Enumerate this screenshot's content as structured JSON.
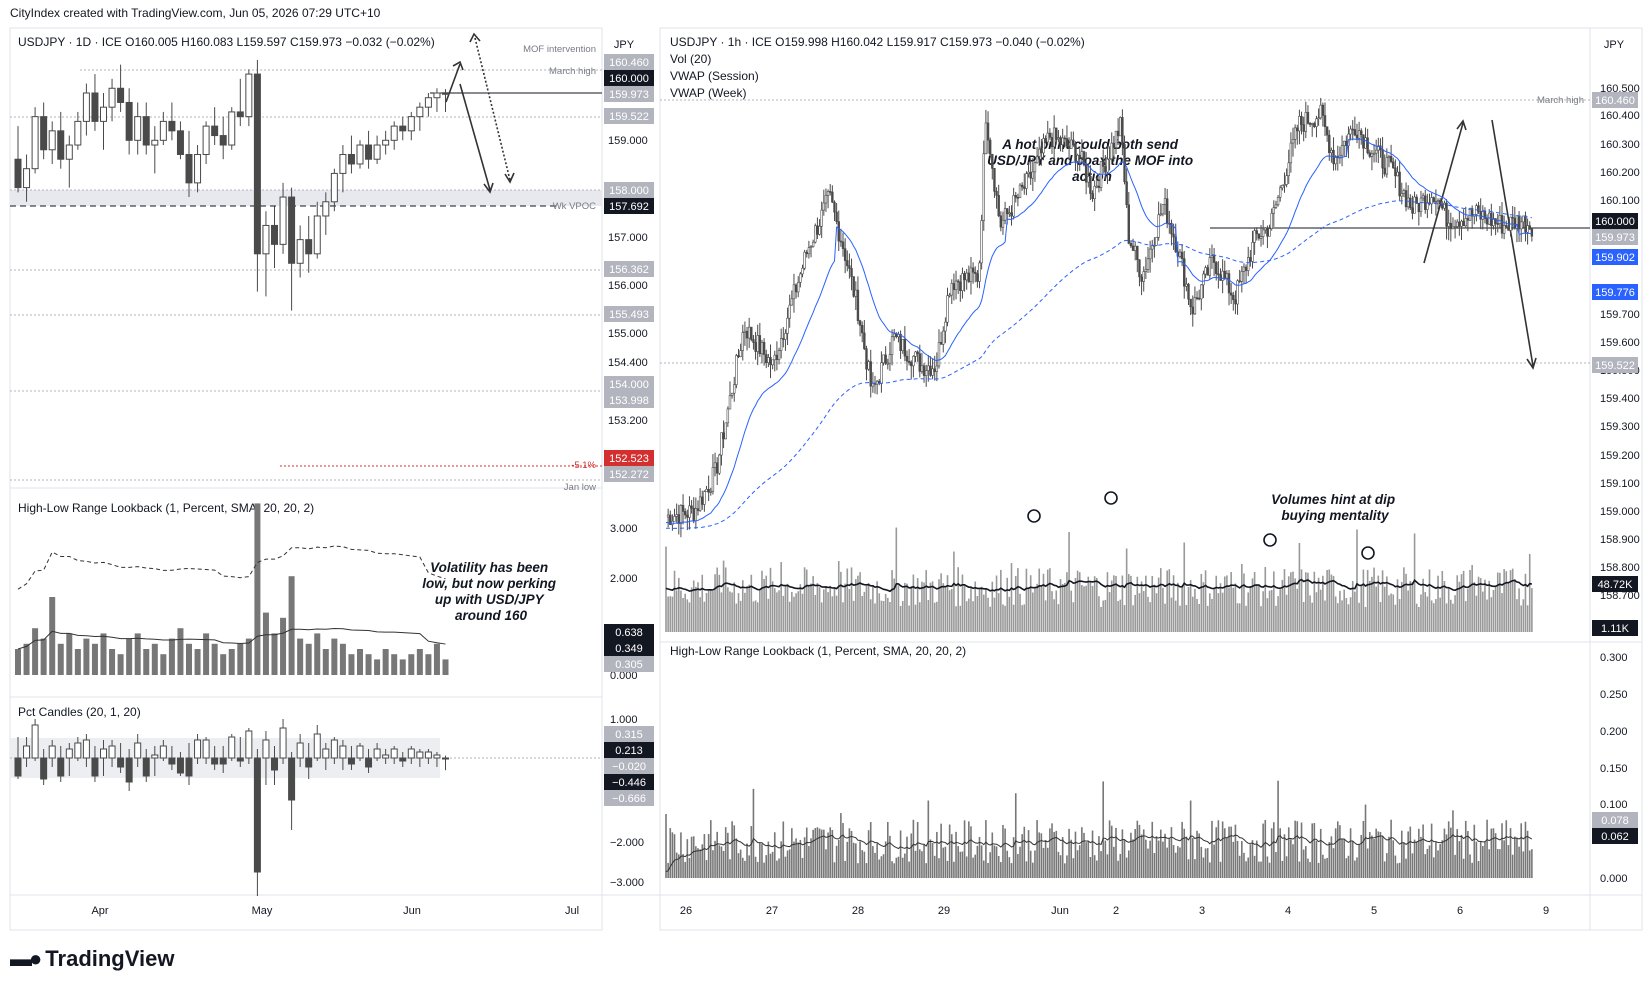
{
  "header": {
    "credit": "CityIndex created with TradingView.com, Jun 05, 2026 07:29 UTC+10"
  },
  "brand": {
    "name": "TradingView",
    "icon": "tradingview-logo-icon"
  },
  "colors": {
    "candle": "#4a4a4a",
    "vwap_session": "#2962ff",
    "vwap_week": "#2962ff",
    "highlight_label": "#d32f2f",
    "blue_label": "#2962ff",
    "dark_label": "#131722",
    "grey_label": "#b2b5be"
  },
  "left_chart": {
    "symbol_line": "USDJPY · 1D · ICE   O160.005   H160.083   L159.597   C159.973   −0.032 (−0.02%)",
    "currency": "JPY",
    "x_ticks": [
      "Apr",
      "May",
      "Jun",
      "Jul"
    ],
    "price_ticks": [
      "159.000",
      "157.000",
      "156.000",
      "155.000",
      "154.400",
      "153.200"
    ],
    "price_labels": [
      {
        "text": "160.460",
        "style": "grey",
        "value": 160.46
      },
      {
        "text": "160.000",
        "style": "dark",
        "value": 160.0
      },
      {
        "text": "159.973",
        "style": "grey",
        "value": 159.973
      },
      {
        "text": "159.522",
        "style": "grey",
        "value": 159.522
      },
      {
        "text": "158.000",
        "style": "grey",
        "value": 158.0
      },
      {
        "text": "157.692",
        "style": "dark",
        "value": 157.692
      },
      {
        "text": "156.362",
        "style": "grey",
        "value": 156.362
      },
      {
        "text": "155.493",
        "style": "grey",
        "value": 155.493
      },
      {
        "text": "154.000",
        "style": "grey",
        "value": 154.0
      },
      {
        "text": "153.998",
        "style": "grey",
        "value": 153.998
      },
      {
        "text": "152.523",
        "style": "red",
        "value": 152.523
      },
      {
        "text": "152.272",
        "style": "grey",
        "value": 152.272
      }
    ],
    "line_labels": {
      "mof": "MOF intervention",
      "march_high": "March high",
      "wk_vpoc": "Wk VPOC",
      "pct": "-5.1%",
      "jan_low": "Jan low"
    },
    "candles": [
      [
        158.6,
        159.3,
        157.9,
        158.0
      ],
      [
        158.0,
        158.7,
        157.7,
        158.4
      ],
      [
        158.4,
        159.7,
        158.3,
        159.5
      ],
      [
        159.5,
        159.8,
        158.6,
        158.8
      ],
      [
        158.8,
        159.4,
        158.5,
        159.2
      ],
      [
        159.2,
        159.6,
        158.4,
        158.6
      ],
      [
        158.6,
        159.1,
        158.0,
        158.9
      ],
      [
        158.9,
        159.6,
        158.8,
        159.4
      ],
      [
        159.4,
        160.2,
        159.1,
        160.0
      ],
      [
        160.0,
        160.4,
        159.2,
        159.4
      ],
      [
        159.4,
        160.0,
        158.8,
        159.7
      ],
      [
        159.7,
        160.3,
        159.4,
        160.1
      ],
      [
        160.1,
        160.6,
        159.6,
        159.8
      ],
      [
        159.8,
        160.1,
        158.7,
        159.0
      ],
      [
        159.0,
        159.8,
        158.7,
        159.5
      ],
      [
        159.5,
        159.8,
        158.7,
        158.9
      ],
      [
        158.9,
        159.3,
        158.3,
        159.0
      ],
      [
        159.0,
        159.6,
        158.9,
        159.4
      ],
      [
        159.4,
        159.8,
        159.0,
        159.2
      ],
      [
        159.2,
        159.4,
        158.6,
        158.7
      ],
      [
        158.7,
        159.2,
        157.8,
        158.1
      ],
      [
        158.1,
        158.9,
        157.9,
        158.7
      ],
      [
        158.7,
        159.4,
        158.5,
        159.3
      ],
      [
        159.3,
        159.7,
        158.9,
        159.1
      ],
      [
        159.1,
        159.5,
        158.6,
        158.9
      ],
      [
        158.9,
        159.7,
        158.8,
        159.6
      ],
      [
        159.6,
        160.3,
        159.3,
        159.5
      ],
      [
        159.5,
        160.5,
        159.3,
        160.4
      ],
      [
        160.4,
        160.7,
        155.8,
        156.6
      ],
      [
        156.6,
        157.5,
        155.7,
        157.2
      ],
      [
        157.2,
        157.6,
        156.3,
        156.8
      ],
      [
        156.8,
        158.1,
        156.6,
        157.8
      ],
      [
        157.8,
        158.0,
        155.4,
        156.4
      ],
      [
        156.4,
        157.2,
        156.1,
        156.9
      ],
      [
        156.9,
        157.4,
        156.2,
        156.6
      ],
      [
        156.6,
        157.7,
        156.5,
        157.4
      ],
      [
        157.4,
        157.9,
        157.0,
        157.7
      ],
      [
        157.7,
        158.4,
        157.5,
        158.3
      ],
      [
        158.3,
        158.9,
        157.9,
        158.7
      ],
      [
        158.7,
        159.1,
        158.3,
        158.5
      ],
      [
        158.5,
        159.0,
        158.4,
        158.9
      ],
      [
        158.9,
        159.2,
        158.4,
        158.6
      ],
      [
        158.6,
        159.1,
        158.5,
        158.9
      ],
      [
        158.9,
        159.2,
        158.7,
        159.0
      ],
      [
        159.0,
        159.4,
        158.8,
        159.3
      ],
      [
        159.3,
        159.5,
        159.0,
        159.2
      ],
      [
        159.2,
        159.6,
        159.0,
        159.5
      ],
      [
        159.5,
        159.8,
        159.2,
        159.7
      ],
      [
        159.7,
        160.0,
        159.5,
        159.9
      ],
      [
        159.9,
        160.1,
        159.6,
        160.0
      ],
      [
        160.005,
        160.083,
        159.597,
        159.973
      ]
    ],
    "range_indicator": {
      "title": "High-Low Range Lookback (1, Percent, SMA, 20, 20, 2)",
      "ticks": [
        "3.000",
        "2.000",
        "0.000"
      ],
      "labels": [
        {
          "text": "0.638",
          "style": "dark"
        },
        {
          "text": "0.349",
          "style": "dark"
        },
        {
          "text": "0.305",
          "style": "grey"
        }
      ],
      "values": [
        0.5,
        0.6,
        0.9,
        0.7,
        1.5,
        0.6,
        0.8,
        0.5,
        0.7,
        0.6,
        0.8,
        0.5,
        0.4,
        0.7,
        0.8,
        0.5,
        0.6,
        0.4,
        0.7,
        0.9,
        0.6,
        0.5,
        0.8,
        0.6,
        0.4,
        0.5,
        0.6,
        0.7,
        3.3,
        1.2,
        0.8,
        1.1,
        1.9,
        0.7,
        0.6,
        0.8,
        0.5,
        0.7,
        0.6,
        0.4,
        0.5,
        0.4,
        0.3,
        0.5,
        0.4,
        0.3,
        0.4,
        0.5,
        0.4,
        0.6,
        0.3
      ]
    },
    "pct_indicator": {
      "title": "Pct Candles (20, 1, 20)",
      "ticks": [
        "1.000",
        "−2.000",
        "−3.000"
      ],
      "labels": [
        {
          "text": "0.315",
          "style": "grey"
        },
        {
          "text": "0.213",
          "style": "dark"
        },
        {
          "text": "−0.020",
          "style": "grey"
        },
        {
          "text": "−0.446",
          "style": "dark"
        },
        {
          "text": "−0.666",
          "style": "grey"
        }
      ]
    },
    "annotation": "Volatility has been low, but now perking up with USD/JPY around 160"
  },
  "right_chart": {
    "symbol_line": "USDJPY · 1h · ICE   O159.998   H160.042   L159.917   C159.973   −0.040 (−0.02%)",
    "indicators": [
      "Vol (20)",
      "VWAP (Session)",
      "VWAP (Week)"
    ],
    "currency": "JPY",
    "x_ticks": [
      "26",
      "27",
      "28",
      "29",
      "Jun",
      "2",
      "3",
      "4",
      "5",
      "6",
      "9"
    ],
    "price_ticks": [
      "160.500",
      "160.400",
      "160.300",
      "160.200",
      "160.100",
      "159.700",
      "159.600",
      "159.500",
      "159.400",
      "159.300",
      "159.200",
      "159.100",
      "159.000",
      "158.900",
      "158.800",
      "158.700"
    ],
    "price_labels": [
      {
        "text": "160.460",
        "style": "grey",
        "value": 160.46
      },
      {
        "text": "160.000",
        "style": "dark",
        "value": 160.0
      },
      {
        "text": "159.973",
        "style": "grey",
        "value": 159.973
      },
      {
        "text": "159.902",
        "style": "blue",
        "value": 159.902
      },
      {
        "text": "159.776",
        "style": "blue",
        "value": 159.776
      },
      {
        "text": "159.522",
        "style": "grey",
        "value": 159.522
      }
    ],
    "vol_labels": [
      {
        "text": "48.72K",
        "style": "dark"
      },
      {
        "text": "1.11K",
        "style": "dark"
      }
    ],
    "march_high": "March high",
    "annotation_top": "A hot print could both send USD/JPY and coax the MOF into action",
    "annotation_vol": "Volumes hint at dip buying mentality",
    "range_indicator": {
      "title": "High-Low Range Lookback (1, Percent, SMA, 20, 20, 2)",
      "ticks": [
        "0.300",
        "0.250",
        "0.200",
        "0.150",
        "0.100",
        "0.000"
      ],
      "labels": [
        {
          "text": "0.078",
          "style": "grey"
        },
        {
          "text": "0.062",
          "style": "dark"
        }
      ]
    }
  }
}
